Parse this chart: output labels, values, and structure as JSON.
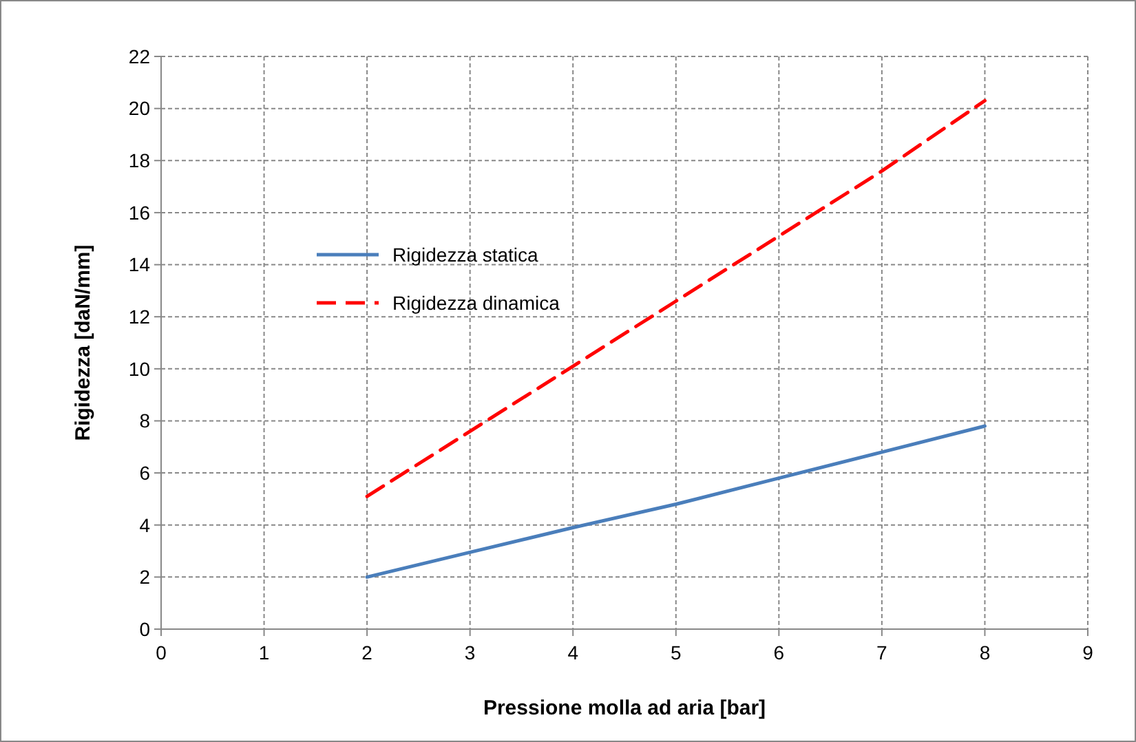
{
  "chart_data": {
    "type": "line",
    "xlabel": "Pressione molla ad aria [bar]",
    "ylabel": "Rigidezza [daN/mm]",
    "x": [
      2,
      3,
      4,
      5,
      6,
      7,
      8
    ],
    "series": [
      {
        "name": "Rigidezza statica",
        "color": "#4a7ebb",
        "values": [
          2.0,
          2.95,
          3.9,
          4.8,
          5.8,
          6.8,
          7.8
        ],
        "line_style": "solid"
      },
      {
        "name": "Rigidezza dinamica",
        "color": "#ff0000",
        "values": [
          5.1,
          7.6,
          10.1,
          12.6,
          15.1,
          17.6,
          20.3
        ],
        "line_style": "dashed"
      }
    ],
    "xlim": [
      0,
      9
    ],
    "xticks": [
      0,
      1,
      2,
      3,
      4,
      5,
      6,
      7,
      8,
      9
    ],
    "ylim": [
      0,
      22
    ],
    "yticks": [
      0,
      2,
      4,
      6,
      8,
      10,
      12,
      14,
      16,
      18,
      20,
      22
    ],
    "grid": true,
    "legend": "left",
    "marker": "none"
  }
}
